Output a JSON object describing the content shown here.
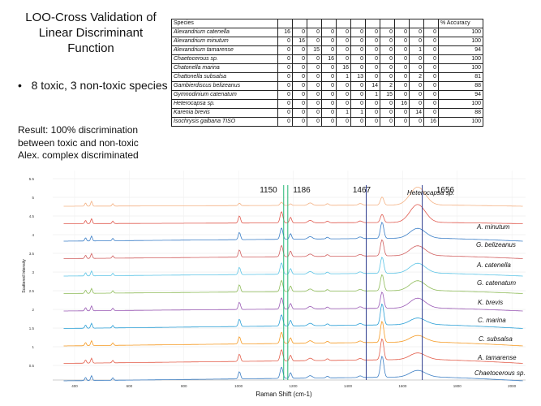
{
  "slide": {
    "title": "LOO-Cross Validation of Linear Discriminant Function",
    "bullet": "8 toxic, 3 non-toxic species",
    "result_lines": [
      "Result: 100% discrimination",
      "between toxic and non-toxic",
      "Alex. complex discriminated"
    ]
  },
  "table": {
    "header_species": "Species",
    "header_accuracy": "% Accuracy",
    "rows": [
      {
        "species": "Alexandrium catenella",
        "counts": [
          "16",
          "0",
          "0",
          "0",
          "0",
          "0",
          "0",
          "0",
          "0",
          "0",
          "0"
        ],
        "accuracy": "100"
      },
      {
        "species": "Alexandrium minutum",
        "counts": [
          "0",
          "16",
          "0",
          "0",
          "0",
          "0",
          "0",
          "0",
          "0",
          "0",
          "0"
        ],
        "accuracy": "100"
      },
      {
        "species": "Alexandrium tamarense",
        "counts": [
          "0",
          "0",
          "15",
          "0",
          "0",
          "0",
          "0",
          "0",
          "0",
          "1",
          "0"
        ],
        "accuracy": "94"
      },
      {
        "species": "Chaetocerous sp.",
        "counts": [
          "0",
          "0",
          "0",
          "16",
          "0",
          "0",
          "0",
          "0",
          "0",
          "0",
          "0"
        ],
        "accuracy": "100"
      },
      {
        "species": "Chatonella marina",
        "counts": [
          "0",
          "0",
          "0",
          "0",
          "16",
          "0",
          "0",
          "0",
          "0",
          "0",
          "0"
        ],
        "accuracy": "100"
      },
      {
        "species": "Chattonella subsalsa",
        "counts": [
          "0",
          "0",
          "0",
          "0",
          "1",
          "13",
          "0",
          "0",
          "0",
          "2",
          "0"
        ],
        "accuracy": "81"
      },
      {
        "species": "Gambierdiscus belizeanus",
        "counts": [
          "0",
          "0",
          "0",
          "0",
          "0",
          "0",
          "14",
          "2",
          "0",
          "0",
          "0"
        ],
        "accuracy": "88"
      },
      {
        "species": "Gymnodinium catenatum",
        "counts": [
          "0",
          "0",
          "0",
          "0",
          "0",
          "0",
          "1",
          "15",
          "0",
          "0",
          "0"
        ],
        "accuracy": "94"
      },
      {
        "species": "Heterocapsa sp.",
        "counts": [
          "0",
          "0",
          "0",
          "0",
          "0",
          "0",
          "0",
          "0",
          "16",
          "0",
          "0"
        ],
        "accuracy": "100"
      },
      {
        "species": "Karenia brevis",
        "counts": [
          "0",
          "0",
          "0",
          "0",
          "1",
          "1",
          "0",
          "0",
          "0",
          "14",
          "0"
        ],
        "accuracy": "88"
      },
      {
        "species": "Isochrysis galbana TISO",
        "counts": [
          "0",
          "0",
          "0",
          "0",
          "0",
          "0",
          "0",
          "0",
          "0",
          "0",
          "16"
        ],
        "accuracy": "100"
      }
    ]
  },
  "spectra": {
    "x_axis_title": "Raman Shift (cm-1)",
    "y_axis_title": "Scattered Intensity",
    "x_ticks": [
      "400",
      "600",
      "800",
      "1000",
      "1200",
      "1400",
      "1600",
      "1800",
      "2000"
    ],
    "y_ticks": [
      "0.5",
      "1",
      "1.5",
      "2",
      "2.5",
      "3",
      "3.5",
      "4",
      "4.5",
      "5",
      "5.5"
    ],
    "markers": [
      "1150",
      "1186",
      "1467",
      "1656"
    ],
    "marker_colors": [
      "#22b573",
      "#22b573",
      "#2b3a8c",
      "#2b3a8c"
    ],
    "series": [
      {
        "name": "Heterocapsa sp.",
        "color": "#f4b183"
      },
      {
        "name": "A. minutum",
        "color": "#e05a4f"
      },
      {
        "name": "G. belizeanus",
        "color": "#3a7ec7"
      },
      {
        "name": "A. catenella",
        "color": "#d16060"
      },
      {
        "name": "G. catenatum",
        "color": "#5bc4e6"
      },
      {
        "name": "K. brevis",
        "color": "#8fbc5a"
      },
      {
        "name": "C. marina",
        "color": "#9a5ab5"
      },
      {
        "name": "C. subsalsa",
        "color": "#2a9fd6"
      },
      {
        "name": "A. tamarense",
        "color": "#f59a23"
      },
      {
        "name": "",
        "color": "#e35d4a"
      },
      {
        "name": "Chaetocerous sp.",
        "color": "#3d7fc4"
      }
    ]
  }
}
